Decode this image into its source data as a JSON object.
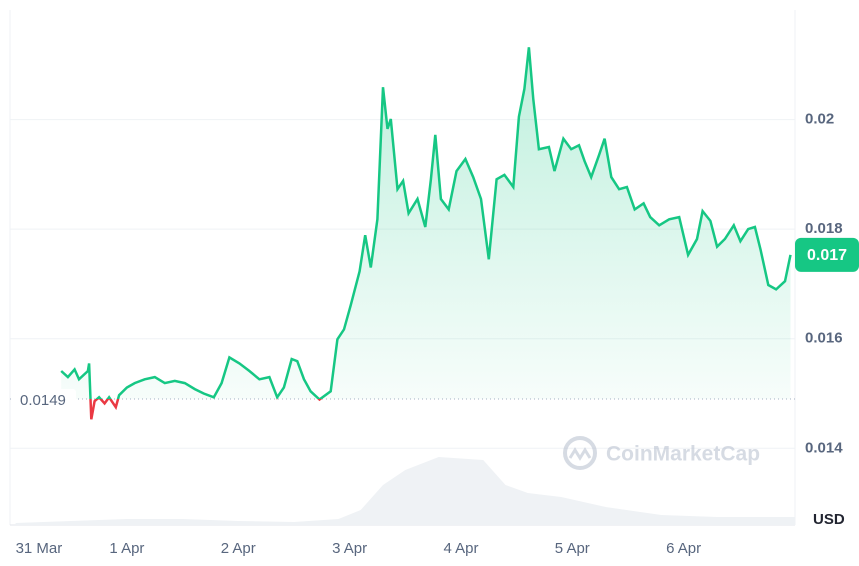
{
  "chart_data": {
    "type": "line",
    "x": [
      0.41,
      0.47,
      0.53,
      0.57,
      0.65,
      0.66,
      0.68,
      0.71,
      0.75,
      0.8,
      0.84,
      0.9,
      0.93,
      1.0,
      1.07,
      1.16,
      1.25,
      1.34,
      1.43,
      1.52,
      1.61,
      1.69,
      1.78,
      1.85,
      1.92,
      2.01,
      2.1,
      2.19,
      2.28,
      2.35,
      2.41,
      2.48,
      2.53,
      2.59,
      2.65,
      2.73,
      2.83,
      2.89,
      2.95,
      3.01,
      3.09,
      3.14,
      3.19,
      3.25,
      3.3,
      3.34,
      3.37,
      3.43,
      3.48,
      3.53,
      3.61,
      3.68,
      3.73,
      3.77,
      3.82,
      3.89,
      3.96,
      4.04,
      4.11,
      4.18,
      4.25,
      4.32,
      4.39,
      4.47,
      4.52,
      4.57,
      4.61,
      4.65,
      4.7,
      4.79,
      4.84,
      4.92,
      4.99,
      5.06,
      5.11,
      5.17,
      5.24,
      5.29,
      5.35,
      5.42,
      5.49,
      5.56,
      5.64,
      5.7,
      5.78,
      5.87,
      5.96,
      6.04,
      6.12,
      6.17,
      6.24,
      6.3,
      6.37,
      6.45,
      6.51,
      6.58,
      6.64,
      6.69,
      6.76,
      6.83,
      6.91,
      6.96
    ],
    "values": [
      0.01541,
      0.0153,
      0.01544,
      0.01526,
      0.01541,
      0.01555,
      0.01453,
      0.01486,
      0.01493,
      0.01482,
      0.01493,
      0.01475,
      0.01497,
      0.01511,
      0.01519,
      0.01526,
      0.0153,
      0.01519,
      0.01523,
      0.01519,
      0.01508,
      0.015,
      0.01493,
      0.01519,
      0.01566,
      0.01555,
      0.01541,
      0.01526,
      0.0153,
      0.01493,
      0.01511,
      0.01563,
      0.01559,
      0.01526,
      0.01504,
      0.01489,
      0.01504,
      0.01599,
      0.01617,
      0.01661,
      0.01723,
      0.01789,
      0.0173,
      0.01818,
      0.02059,
      0.01983,
      0.02001,
      0.01873,
      0.01888,
      0.01829,
      0.01855,
      0.01804,
      0.01891,
      0.01972,
      0.01855,
      0.01836,
      0.01906,
      0.01928,
      0.01895,
      0.01855,
      0.01745,
      0.01891,
      0.01899,
      0.01877,
      0.02005,
      0.02056,
      0.02132,
      0.02037,
      0.01946,
      0.0195,
      0.01906,
      0.01965,
      0.01946,
      0.01953,
      0.01924,
      0.01895,
      0.01935,
      0.01965,
      0.01895,
      0.01873,
      0.01877,
      0.01836,
      0.01847,
      0.01822,
      0.01807,
      0.01818,
      0.01822,
      0.01753,
      0.01782,
      0.01833,
      0.01815,
      0.01768,
      0.01782,
      0.01807,
      0.01778,
      0.018,
      0.01804,
      0.01763,
      0.01698,
      0.0169,
      0.01705,
      0.01753
    ],
    "up_color": "#16c784",
    "down_color": "#ea3943",
    "baseline": 0.0149,
    "price_label": "0.017",
    "currency": "USD",
    "watermark": "CoinMarketCap",
    "xlim": [
      -0.05,
      7.0
    ],
    "ylim": [
      0.0126,
      0.022
    ],
    "yticks": [
      0.014,
      0.016,
      0.018,
      0.02
    ],
    "xticks": [
      {
        "value": 0,
        "label": "31 Mar"
      },
      {
        "value": 1,
        "label": "1 Apr"
      },
      {
        "value": 2,
        "label": "2 Apr"
      },
      {
        "value": 3,
        "label": "3 Apr"
      },
      {
        "value": 4,
        "label": "4 Apr"
      },
      {
        "value": 5,
        "label": "5 Apr"
      },
      {
        "value": 6,
        "label": "6 Apr"
      }
    ],
    "grid": true,
    "volume": {
      "x": [
        0,
        0.5,
        1,
        1.5,
        2,
        2.5,
        2.9,
        3.1,
        3.3,
        3.5,
        3.8,
        4.2,
        4.4,
        4.6,
        4.9,
        5.3,
        5.8,
        6.3,
        7.0
      ],
      "values": [
        2,
        4,
        6,
        6,
        4,
        3,
        6,
        15,
        40,
        55,
        68,
        65,
        40,
        32,
        28,
        18,
        10,
        8,
        8
      ],
      "ylim": [
        0,
        75
      ],
      "color": "#eff2f5"
    }
  }
}
